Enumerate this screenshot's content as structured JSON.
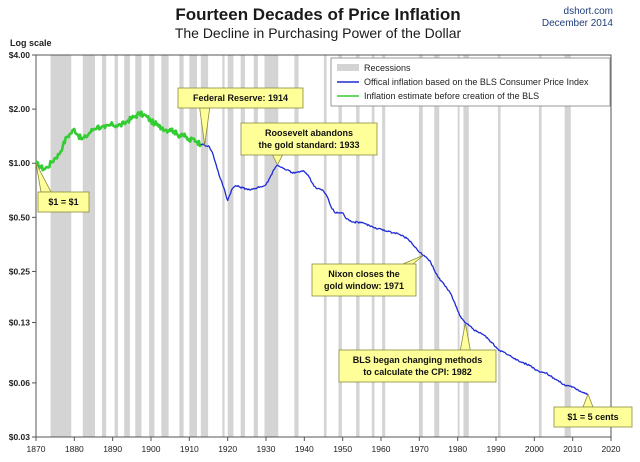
{
  "header": {
    "title": "Fourteen Decades of Price Inflation",
    "subtitle": "The Decline in Purchasing Power of the Dollar",
    "source_line1": "dshort.com",
    "source_line2": "December 2014"
  },
  "colors": {
    "bls_line": "#1f2bd6",
    "pre_bls_line": "#33cc33",
    "recession": "#d4d4d4",
    "callout_fill": "#ffff99",
    "callout_border": "#8a8a40"
  },
  "chart_data": {
    "type": "line",
    "title": "Fourteen Decades of Price Inflation",
    "subtitle": "The Decline in Purchasing Power of the Dollar",
    "xlabel": "",
    "ylabel": "Log scale",
    "y_scale": "log",
    "xlim": [
      1870,
      2020
    ],
    "ylim": [
      0.03,
      4.0
    ],
    "x_ticks": [
      1870,
      1880,
      1890,
      1900,
      1910,
      1920,
      1930,
      1940,
      1950,
      1960,
      1970,
      1980,
      1990,
      2000,
      2010,
      2020
    ],
    "y_ticks": [
      {
        "value": 4.0,
        "label": "$4.00"
      },
      {
        "value": 2.0,
        "label": "$2.00"
      },
      {
        "value": 1.0,
        "label": "$1.00"
      },
      {
        "value": 0.5,
        "label": "$0.50"
      },
      {
        "value": 0.25,
        "label": "$0.25"
      },
      {
        "value": 0.13,
        "label": "$0.13"
      },
      {
        "value": 0.06,
        "label": "$0.06"
      },
      {
        "value": 0.03,
        "label": "$0.03"
      }
    ],
    "grid": false,
    "legend_position": "top-right",
    "legend": [
      {
        "key": "recessions",
        "label": "Recessions"
      },
      {
        "key": "bls",
        "label": "Offical inflation based on the BLS Consumer Price Index"
      },
      {
        "key": "pre_bls",
        "label": "Inflation estimate before creation of the BLS"
      }
    ],
    "recessions": [
      [
        1873.8,
        1879.2
      ],
      [
        1882.2,
        1885.4
      ],
      [
        1887.2,
        1888.3
      ],
      [
        1890.5,
        1891.4
      ],
      [
        1893.0,
        1894.5
      ],
      [
        1895.9,
        1897.5
      ],
      [
        1899.5,
        1900.9
      ],
      [
        1902.7,
        1904.6
      ],
      [
        1907.4,
        1908.5
      ],
      [
        1910.0,
        1912.0
      ],
      [
        1913.0,
        1914.9
      ],
      [
        1918.6,
        1919.2
      ],
      [
        1920.0,
        1921.5
      ],
      [
        1923.4,
        1924.5
      ],
      [
        1926.8,
        1927.9
      ],
      [
        1929.6,
        1933.2
      ],
      [
        1937.4,
        1938.5
      ],
      [
        1945.1,
        1945.8
      ],
      [
        1948.9,
        1949.8
      ],
      [
        1953.5,
        1954.4
      ],
      [
        1957.6,
        1958.3
      ],
      [
        1960.3,
        1961.1
      ],
      [
        1969.9,
        1970.9
      ],
      [
        1973.9,
        1975.2
      ],
      [
        1980.0,
        1980.5
      ],
      [
        1981.5,
        1982.9
      ],
      [
        1990.5,
        1991.2
      ],
      [
        2001.2,
        2001.9
      ],
      [
        2007.9,
        2009.5
      ]
    ],
    "series": [
      {
        "key": "pre_bls",
        "name": "Inflation estimate before creation of the BLS",
        "points": [
          [
            1870,
            1.0
          ],
          [
            1871,
            0.96
          ],
          [
            1872,
            0.93
          ],
          [
            1873,
            0.95
          ],
          [
            1874,
            1.01
          ],
          [
            1875,
            1.07
          ],
          [
            1876,
            1.12
          ],
          [
            1877,
            1.25
          ],
          [
            1878,
            1.4
          ],
          [
            1879,
            1.46
          ],
          [
            1880,
            1.55
          ],
          [
            1881,
            1.43
          ],
          [
            1882,
            1.36
          ],
          [
            1883,
            1.4
          ],
          [
            1884,
            1.48
          ],
          [
            1885,
            1.55
          ],
          [
            1886,
            1.6
          ],
          [
            1887,
            1.58
          ],
          [
            1888,
            1.57
          ],
          [
            1889,
            1.62
          ],
          [
            1890,
            1.64
          ],
          [
            1891,
            1.62
          ],
          [
            1892,
            1.63
          ],
          [
            1893,
            1.66
          ],
          [
            1894,
            1.73
          ],
          [
            1895,
            1.78
          ],
          [
            1896,
            1.83
          ],
          [
            1897,
            1.89
          ],
          [
            1898,
            1.86
          ],
          [
            1899,
            1.81
          ],
          [
            1900,
            1.71
          ],
          [
            1901,
            1.67
          ],
          [
            1902,
            1.6
          ],
          [
            1903,
            1.58
          ],
          [
            1904,
            1.53
          ],
          [
            1905,
            1.55
          ],
          [
            1906,
            1.51
          ],
          [
            1907,
            1.43
          ],
          [
            1908,
            1.46
          ],
          [
            1909,
            1.4
          ],
          [
            1910,
            1.33
          ],
          [
            1911,
            1.37
          ],
          [
            1912,
            1.32
          ],
          [
            1913,
            1.28
          ]
        ]
      },
      {
        "key": "bls",
        "name": "Offical inflation based on the BLS Consumer Price Index",
        "points": [
          [
            1913,
            1.28
          ],
          [
            1914,
            1.26
          ],
          [
            1915,
            1.25
          ],
          [
            1916,
            1.15
          ],
          [
            1917,
            0.98
          ],
          [
            1918,
            0.83
          ],
          [
            1919,
            0.73
          ],
          [
            1920,
            0.62
          ],
          [
            1921,
            0.71
          ],
          [
            1922,
            0.75
          ],
          [
            1923,
            0.74
          ],
          [
            1924,
            0.73
          ],
          [
            1925,
            0.72
          ],
          [
            1926,
            0.71
          ],
          [
            1927,
            0.72
          ],
          [
            1928,
            0.74
          ],
          [
            1929,
            0.74
          ],
          [
            1930,
            0.76
          ],
          [
            1931,
            0.83
          ],
          [
            1932,
            0.92
          ],
          [
            1933,
            0.98
          ],
          [
            1934,
            0.95
          ],
          [
            1935,
            0.92
          ],
          [
            1936,
            0.91
          ],
          [
            1937,
            0.88
          ],
          [
            1938,
            0.89
          ],
          [
            1939,
            0.9
          ],
          [
            1940,
            0.9
          ],
          [
            1941,
            0.86
          ],
          [
            1942,
            0.78
          ],
          [
            1943,
            0.73
          ],
          [
            1944,
            0.72
          ],
          [
            1945,
            0.7
          ],
          [
            1946,
            0.65
          ],
          [
            1947,
            0.57
          ],
          [
            1948,
            0.53
          ],
          [
            1949,
            0.53
          ],
          [
            1950,
            0.53
          ],
          [
            1951,
            0.49
          ],
          [
            1952,
            0.48
          ],
          [
            1953,
            0.47
          ],
          [
            1954,
            0.47
          ],
          [
            1955,
            0.47
          ],
          [
            1956,
            0.46
          ],
          [
            1957,
            0.45
          ],
          [
            1958,
            0.44
          ],
          [
            1959,
            0.43
          ],
          [
            1960,
            0.43
          ],
          [
            1961,
            0.42
          ],
          [
            1962,
            0.42
          ],
          [
            1963,
            0.41
          ],
          [
            1964,
            0.41
          ],
          [
            1965,
            0.4
          ],
          [
            1966,
            0.39
          ],
          [
            1967,
            0.38
          ],
          [
            1968,
            0.36
          ],
          [
            1969,
            0.34
          ],
          [
            1970,
            0.32
          ],
          [
            1971,
            0.307
          ],
          [
            1972,
            0.297
          ],
          [
            1973,
            0.28
          ],
          [
            1974,
            0.252
          ],
          [
            1975,
            0.231
          ],
          [
            1976,
            0.218
          ],
          [
            1977,
            0.205
          ],
          [
            1978,
            0.191
          ],
          [
            1979,
            0.171
          ],
          [
            1980,
            0.151
          ],
          [
            1981,
            0.137
          ],
          [
            1982,
            0.129
          ],
          [
            1983,
            0.125
          ],
          [
            1984,
            0.12
          ],
          [
            1985,
            0.116
          ],
          [
            1986,
            0.114
          ],
          [
            1987,
            0.11
          ],
          [
            1988,
            0.105
          ],
          [
            1989,
            0.1
          ],
          [
            1990,
            0.095
          ],
          [
            1991,
            0.091
          ],
          [
            1992,
            0.089
          ],
          [
            1993,
            0.086
          ],
          [
            1994,
            0.084
          ],
          [
            1995,
            0.082
          ],
          [
            1996,
            0.079
          ],
          [
            1997,
            0.078
          ],
          [
            1998,
            0.076
          ],
          [
            1999,
            0.075
          ],
          [
            2000,
            0.072
          ],
          [
            2001,
            0.07
          ],
          [
            2002,
            0.069
          ],
          [
            2003,
            0.068
          ],
          [
            2004,
            0.066
          ],
          [
            2005,
            0.064
          ],
          [
            2006,
            0.062
          ],
          [
            2007,
            0.06
          ],
          [
            2008,
            0.058
          ],
          [
            2009,
            0.058
          ],
          [
            2010,
            0.057
          ],
          [
            2011,
            0.055
          ],
          [
            2012,
            0.054
          ],
          [
            2013,
            0.053
          ],
          [
            2014,
            0.052
          ]
        ]
      }
    ],
    "annotations": [
      {
        "lines": [
          "Federal Reserve: 1914"
        ],
        "x": 1914,
        "y": 1.26
      },
      {
        "lines": [
          "Roosevelt abandons",
          "the gold standard: 1933"
        ],
        "x": 1933,
        "y": 0.98
      },
      {
        "lines": [
          "$1 = $1"
        ],
        "x": 1870,
        "y": 1.0
      },
      {
        "lines": [
          "Nixon closes the",
          "gold window: 1971"
        ],
        "x": 1971,
        "y": 0.307
      },
      {
        "lines": [
          "BLS began  changing methods",
          "to calculate the CPI: 1982"
        ],
        "x": 1982,
        "y": 0.129
      },
      {
        "lines": [
          "$1 = 5 cents"
        ],
        "x": 2014,
        "y": 0.052
      }
    ]
  }
}
